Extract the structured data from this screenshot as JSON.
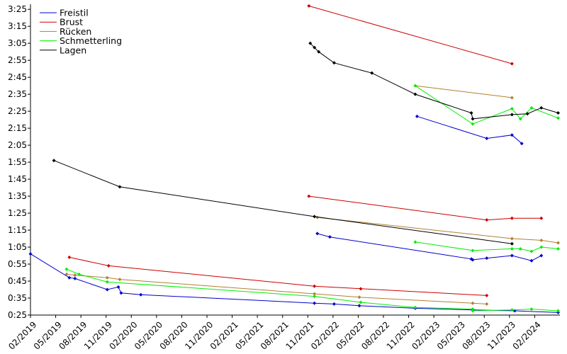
{
  "chart_data": {
    "type": "line",
    "title": "",
    "xlabel": "",
    "ylabel": "",
    "x_axis": {
      "type": "date",
      "ticks": [
        "02/2019",
        "05/2019",
        "08/2019",
        "11/2019",
        "02/2020",
        "05/2020",
        "08/2020",
        "11/2020",
        "02/2021",
        "05/2021",
        "08/2021",
        "11/2021",
        "02/2022",
        "05/2022",
        "08/2022",
        "11/2022",
        "02/2023",
        "05/2023",
        "08/2023",
        "11/2023",
        "02/2024"
      ],
      "range": [
        "2019-02-01",
        "2024-05-01"
      ]
    },
    "y_axis": {
      "unit": "m:ss",
      "ticks": [
        "0:25",
        "0:35",
        "0:45",
        "0:55",
        "1:05",
        "1:15",
        "1:25",
        "1:35",
        "1:45",
        "1:55",
        "2:05",
        "2:15",
        "2:25",
        "2:35",
        "2:45",
        "2:55",
        "3:05",
        "3:15",
        "3:25"
      ],
      "tick_labels": [
        "0:25",
        "0:35",
        "0:45",
        "0:55",
        "1:05",
        "1:15",
        "1:25",
        "1:35",
        "1:45",
        "1:55",
        "2:05",
        "2:15",
        "2:25",
        "2:35",
        "2:45",
        "2:55",
        "3:05",
        "3:15",
        "3:25"
      ],
      "range": [
        "0:25",
        "3:28"
      ]
    },
    "grid": false,
    "legend": {
      "placement": "top-left"
    },
    "series": [
      {
        "name": "Freistil",
        "color": "#0000cc",
        "lines": [
          [
            [
              "2019-02-01",
              "1:01.0"
            ],
            [
              "2019-06-20",
              "0:47.0"
            ],
            [
              "2019-07-10",
              "0:46.5"
            ],
            [
              "2019-11-05",
              "0:40.0"
            ],
            [
              "2019-12-15",
              "0:41.5"
            ],
            [
              "2019-12-25",
              "0:38.0"
            ],
            [
              "2020-03-05",
              "0:37.0"
            ],
            [
              "2021-11-25",
              "0:32.0"
            ],
            [
              "2022-02-05",
              "0:31.5"
            ],
            [
              "2022-05-05",
              "0:30.5"
            ],
            [
              "2022-11-25",
              "0:29.0"
            ],
            [
              "2023-06-20",
              "0:28.0"
            ],
            [
              "2023-11-20",
              "0:27.5"
            ],
            [
              "2024-04-25",
              "0:26.5"
            ]
          ],
          [
            [
              "2021-12-05",
              "1:13.0"
            ],
            [
              "2022-01-20",
              "1:11.0"
            ],
            [
              "2023-06-15",
              "0:58.0"
            ],
            [
              "2023-06-20",
              "0:57.5"
            ],
            [
              "2023-08-10",
              "0:58.5"
            ],
            [
              "2023-11-10",
              "1:00.0"
            ],
            [
              "2024-01-20",
              "0:57.0"
            ],
            [
              "2024-02-25",
              "1:00.0"
            ]
          ],
          [
            [
              "2022-12-01",
              "2:22.0"
            ],
            [
              "2023-08-10",
              "2:09.0"
            ],
            [
              "2023-11-10",
              "2:11.0"
            ],
            [
              "2023-12-15",
              "2:06.0"
            ]
          ]
        ]
      },
      {
        "name": "Brust",
        "color": "#cc0000",
        "lines": [
          [
            [
              "2019-06-20",
              "0:59.0"
            ],
            [
              "2019-11-10",
              "0:54.0"
            ],
            [
              "2021-11-25",
              "0:42.0"
            ],
            [
              "2022-05-10",
              "0:40.5"
            ],
            [
              "2023-08-10",
              "0:36.5"
            ]
          ],
          [
            [
              "2021-11-05",
              "1:35.0"
            ],
            [
              "2023-08-10",
              "1:21.0"
            ],
            [
              "2023-11-10",
              "1:22.0"
            ],
            [
              "2024-02-25",
              "1:22.0"
            ]
          ],
          [
            [
              "2021-11-05",
              "3:27.0"
            ],
            [
              "2023-11-10",
              "2:53.0"
            ]
          ]
        ]
      },
      {
        "name": "Rücken",
        "color": "#b08030",
        "lines": [
          [
            [
              "2019-06-10",
              "0:49.0"
            ],
            [
              "2019-07-10",
              "0:48.5"
            ],
            [
              "2019-11-05",
              "0:47.0"
            ],
            [
              "2019-12-20",
              "0:46.0"
            ],
            [
              "2021-11-25",
              "0:37.5"
            ],
            [
              "2022-05-05",
              "0:35.5"
            ],
            [
              "2023-06-20",
              "0:32.0"
            ],
            [
              "2023-08-10",
              "0:31.5"
            ]
          ],
          [
            [
              "2021-12-05",
              "1:22.5"
            ],
            [
              "2023-11-10",
              "1:10.0"
            ],
            [
              "2024-02-25",
              "1:09.0"
            ],
            [
              "2024-04-25",
              "1:07.5"
            ]
          ],
          [
            [
              "2022-11-25",
              "2:40.0"
            ],
            [
              "2023-11-10",
              "2:33.0"
            ]
          ]
        ]
      },
      {
        "name": "Schmetterling",
        "color": "#00ee00",
        "lines": [
          [
            [
              "2019-06-10",
              "0:52.0"
            ],
            [
              "2019-07-25",
              "0:49.0"
            ],
            [
              "2019-11-05",
              "0:44.5"
            ],
            [
              "2021-11-25",
              "0:36.0"
            ],
            [
              "2022-05-10",
              "0:32.5"
            ],
            [
              "2022-11-25",
              "0:29.5"
            ],
            [
              "2023-06-20",
              "0:28.5"
            ],
            [
              "2023-06-20",
              "0:27.5"
            ],
            [
              "2023-11-10",
              "0:28.0"
            ],
            [
              "2024-01-20",
              "0:28.5"
            ],
            [
              "2024-04-25",
              "0:27.5"
            ]
          ],
          [
            [
              "2022-11-25",
              "1:08.0"
            ],
            [
              "2023-06-20",
              "1:03.0"
            ],
            [
              "2023-11-10",
              "1:04.0"
            ],
            [
              "2023-12-10",
              "1:04.0"
            ],
            [
              "2024-01-20",
              "1:02.5"
            ],
            [
              "2024-02-25",
              "1:05.0"
            ],
            [
              "2024-04-25",
              "1:04.0"
            ]
          ],
          [
            [
              "2022-11-25",
              "2:40.0"
            ],
            [
              "2023-06-20",
              "2:17.5"
            ],
            [
              "2023-11-10",
              "2:26.5"
            ],
            [
              "2023-12-10",
              "2:20.5"
            ],
            [
              "2024-01-20",
              "2:27.0"
            ],
            [
              "2024-04-25",
              "2:21.0"
            ]
          ]
        ]
      },
      {
        "name": "Lagen",
        "color": "#000000",
        "lines": [
          [
            [
              "2019-04-25",
              "1:56.0"
            ],
            [
              "2019-12-20",
              "1:40.5"
            ],
            [
              "2021-11-25",
              "1:23.0"
            ],
            [
              "2023-11-10",
              "1:07.0"
            ]
          ],
          [
            [
              "2021-11-10",
              "3:05.0"
            ],
            [
              "2021-11-25",
              "3:02.5"
            ],
            [
              "2021-12-10",
              "3:00.0"
            ],
            [
              "2022-02-05",
              "2:53.5"
            ],
            [
              "2022-06-20",
              "2:47.5"
            ],
            [
              "2022-11-25",
              "2:35.0"
            ],
            [
              "2023-06-15",
              "2:24.0"
            ],
            [
              "2023-06-20",
              "2:20.5"
            ],
            [
              "2023-11-10",
              "2:23.0"
            ],
            [
              "2024-01-05",
              "2:23.5"
            ],
            [
              "2024-02-25",
              "2:27.0"
            ],
            [
              "2024-04-25",
              "2:24.0"
            ]
          ]
        ]
      }
    ]
  }
}
